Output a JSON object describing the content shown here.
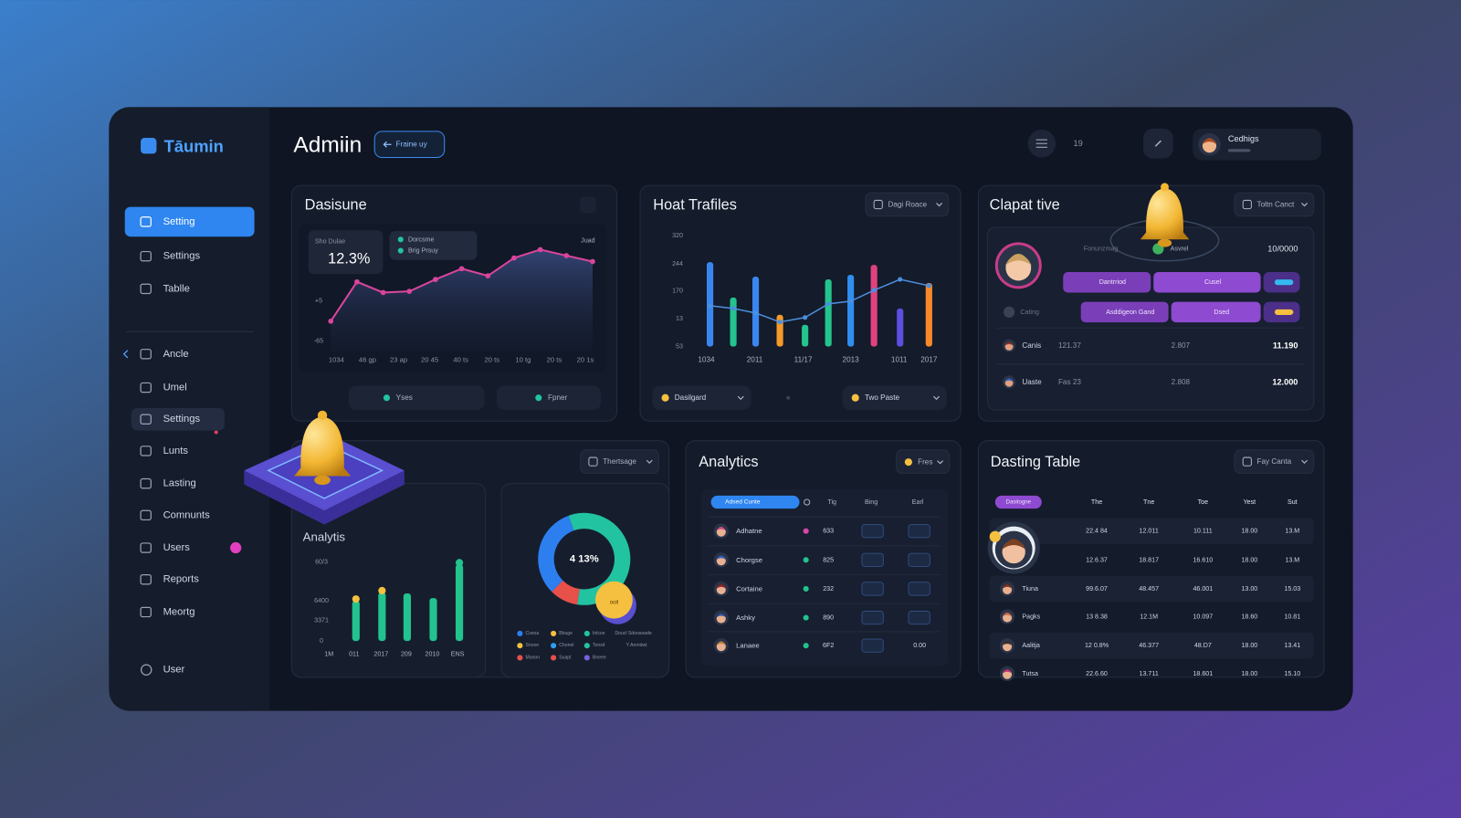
{
  "sidebar": {
    "brand": "Tāumin",
    "nav": [
      {
        "label": "Setting",
        "active": true
      },
      {
        "label": "Settings"
      },
      {
        "label": "Tablle"
      },
      {
        "label": "Ancle"
      },
      {
        "label": "Umel"
      },
      {
        "label": "Settings",
        "highlight": true
      },
      {
        "label": "Lunts"
      },
      {
        "label": "Lasting"
      },
      {
        "label": "Comnunts"
      },
      {
        "label": "Users"
      },
      {
        "label": "Reports"
      },
      {
        "label": "Meortg"
      }
    ],
    "footer": "User"
  },
  "header": {
    "title": "Admiin",
    "button": "Fraine uy",
    "count": "19",
    "user_name": "Cedhigs"
  },
  "dashboard": {
    "title": "Dasisune",
    "stat_label": "Sho Dulae",
    "stat_value": "12.3%",
    "legend": [
      "Dorcsme",
      "Brig Prsuy"
    ],
    "tag": "Juad",
    "y_labels": [
      "+5",
      "-65"
    ],
    "x_labels": [
      "1034",
      "46 gp",
      "23 ap",
      "20 45",
      "40 ts",
      "20 ts",
      "10 tg",
      "20 ts",
      "20 1s"
    ],
    "line": {
      "color": "#d9459b",
      "values": [
        26,
        59,
        50,
        51,
        61,
        70,
        64,
        79,
        86,
        81,
        76
      ],
      "ylim": [
        0,
        100
      ]
    },
    "buttons": [
      "Yses",
      "Fpner"
    ]
  },
  "traffic": {
    "title": "Hoat Trafiles",
    "dropdown": "Dagi Roace",
    "y_labels": [
      "320",
      "244",
      "170",
      "13",
      "53"
    ],
    "x_labels": [
      "1034",
      "2011",
      "11/17",
      "2013",
      "1011",
      "2017"
    ],
    "ylim": [
      0,
      120
    ],
    "bars": {
      "values": [
        93,
        54,
        77,
        35,
        24,
        74,
        79,
        90,
        42,
        70
      ],
      "colors": [
        "#3a86f0",
        "#23c48e",
        "#3a86f0",
        "#f59a2a",
        "#23c48e",
        "#23c48e",
        "#2f8ef0",
        "#e0427e",
        "#5a4fe0",
        "#f5892a"
      ]
    },
    "line": {
      "color": "#4b8fe0",
      "values": [
        45,
        42,
        37,
        27,
        32,
        47,
        50,
        62,
        74,
        67
      ]
    },
    "filters": [
      "Dasilgard",
      "Two Paste"
    ]
  },
  "contact": {
    "title": "Clapat tive",
    "dropdown": "Toltn Canct",
    "profile": {
      "label": "Fonunzmag",
      "status": "Asvrel",
      "amount": "10/0000"
    },
    "tags": [
      [
        "Dantrriod",
        "Cusel"
      ],
      [
        "Asddigeon Gand",
        "Dsed"
      ]
    ],
    "row_label": "Cating",
    "rows": [
      [
        "Canis",
        "121.37",
        "2.807",
        "11.190"
      ],
      [
        "Uaste",
        "Fas 23",
        "2.808",
        "12.000"
      ]
    ]
  },
  "analytics_chart": {
    "dropdown": "Thertsage",
    "title": "Analytis",
    "y_labels": [
      "60/3",
      "6400",
      "3371",
      "0"
    ],
    "x_labels": [
      "1M",
      "011",
      "2017",
      "209",
      "2010",
      "ENS"
    ],
    "ylim": [
      0,
      100
    ],
    "values": [
      43,
      52,
      51,
      46,
      82
    ],
    "color": "#22c38e",
    "dots": [
      "#f5c040",
      "#f5c040",
      null,
      null,
      "#22c38e"
    ]
  },
  "donut": {
    "label": "4 13%",
    "badge": "ooil",
    "segments": [
      {
        "value": 58,
        "color": "#22c3a0"
      },
      {
        "value": 10,
        "color": "#e8504a"
      },
      {
        "value": 32,
        "color": "#2d7ff0"
      }
    ],
    "legend": [
      {
        "label": "Cseoa",
        "color": "#2d7ff0"
      },
      {
        "label": "Bbuge",
        "color": "#f5c040"
      },
      {
        "label": "Inlcoe",
        "color": "#22c3a0"
      },
      {
        "label": "Snoon",
        "color": "#f5c040"
      },
      {
        "label": "Chonel",
        "color": "#2d9ff0"
      },
      {
        "label": "Tonsit",
        "color": "#22c3a0"
      },
      {
        "label": "Manon",
        "color": "#e8504a"
      },
      {
        "label": "Suapt",
        "color": "#e8504a"
      },
      {
        "label": "Bneee",
        "color": "#7a5fe0"
      }
    ],
    "notes": [
      "Doucl Sdooseade",
      "Y Anmdwt"
    ]
  },
  "analytics_table": {
    "title": "Analytics",
    "dropdown": "Fres",
    "tag": "Adsed Cunte",
    "columns": [
      "Tig",
      "Bing",
      "Earl"
    ],
    "rows": [
      {
        "name": "Adhatne",
        "value": "633",
        "dot": "#d946a8"
      },
      {
        "name": "Chorgse",
        "value": "825",
        "dot": "#22c38e"
      },
      {
        "name": "Cortaine",
        "value": "232",
        "dot": "#22c38e"
      },
      {
        "name": "Ashky",
        "value": "890",
        "dot": "#22c38e"
      },
      {
        "name": "Lanaee",
        "value": "6F2",
        "dot": "#22c38e",
        "extra": "0.00"
      }
    ]
  },
  "dasting_table": {
    "title": "Dasting Table",
    "dropdown": "Fay Canta",
    "tag": "Dasitogne",
    "columns": [
      "The",
      "Tne",
      "Toe",
      "Yest",
      "Sut"
    ],
    "rows": [
      {
        "name": null,
        "cells": [
          "22.4 84",
          "12.011",
          "10.111",
          "18.00",
          "13.M"
        ]
      },
      {
        "name": null,
        "cells": [
          "12.6.37",
          "18.817",
          "16.610",
          "18.00",
          "13.M"
        ]
      },
      {
        "name": "Tiuna",
        "cells": [
          "99.6.07",
          "48.457",
          "46.001",
          "13.00",
          "15.03"
        ]
      },
      {
        "name": "Pagks",
        "cells": [
          "13 8.38",
          "12.1M",
          "10.097",
          "18.60",
          "10.81"
        ]
      },
      {
        "name": "Aalitja",
        "cells": [
          "12 0.8%",
          "46.377",
          "48.D7",
          "18.00",
          "13.41"
        ]
      },
      {
        "name": "Tutsa",
        "cells": [
          "22.6.60",
          "13.711",
          "18.601",
          "18.00",
          "15.10"
        ]
      }
    ]
  }
}
